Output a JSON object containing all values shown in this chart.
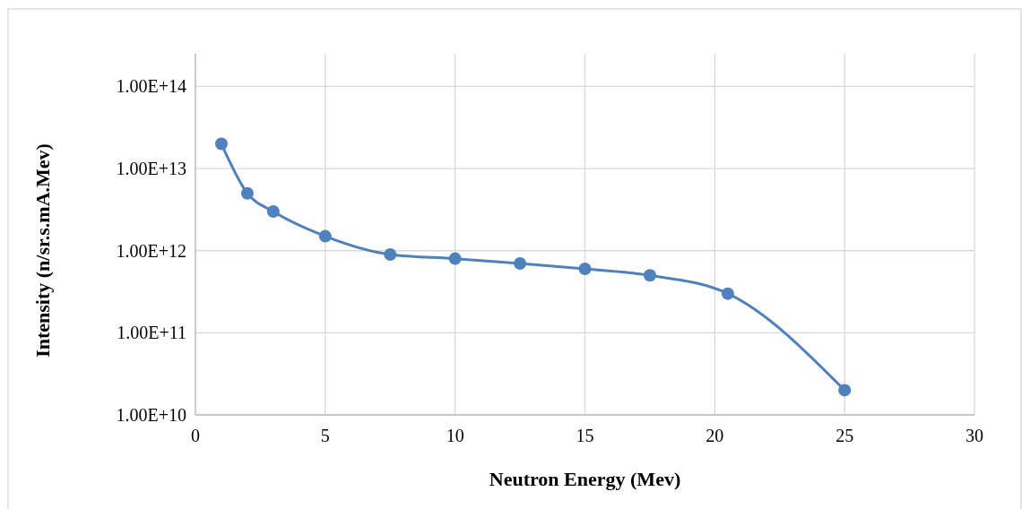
{
  "chart_data": {
    "type": "line",
    "xlabel": "Neutron Energy (Mev)",
    "ylabel": "Intensity (n/sr.s.mA.Mev)",
    "x": [
      1,
      2,
      3,
      5,
      7.5,
      10,
      12.5,
      15,
      17.5,
      20.5,
      25
    ],
    "series": [
      {
        "color": "#4f81bd",
        "values": [
          20000000000000.0,
          5000000000000.0,
          3000000000000.0,
          1500000000000.0,
          900000000000.0,
          800000000000.0,
          700000000000.0,
          600000000000.0,
          500000000000.0,
          300000000000.0,
          20000000000.0
        ]
      }
    ],
    "xlim": [
      0,
      30
    ],
    "xticks": [
      0,
      5,
      10,
      15,
      20,
      25,
      30
    ],
    "ylim": [
      10000000000.0,
      250000000000000.0
    ],
    "yticks": [
      {
        "value": 10000000000.0,
        "label": "1.00E+10"
      },
      {
        "value": 100000000000.0,
        "label": "1.00E+11"
      },
      {
        "value": 1000000000000.0,
        "label": "1.00E+12"
      },
      {
        "value": 10000000000000.0,
        "label": "1.00E+13"
      },
      {
        "value": 100000000000000.0,
        "label": "1.00E+14"
      }
    ],
    "log": true,
    "grid": true,
    "marker": "circle",
    "line_style": "solid"
  }
}
